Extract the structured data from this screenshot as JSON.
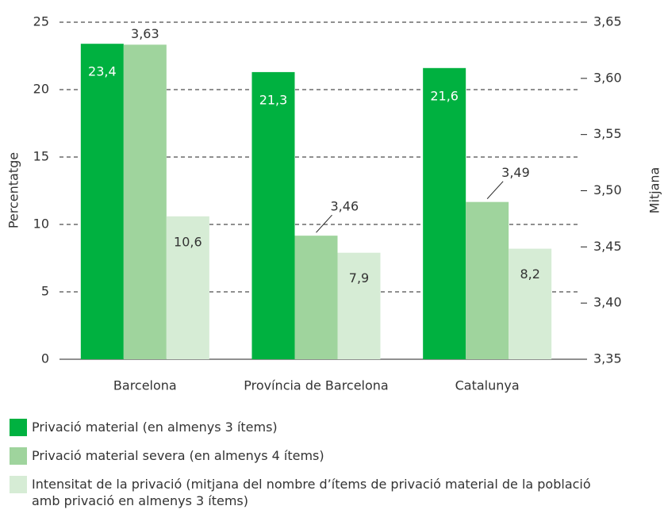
{
  "chart_data": {
    "type": "bar",
    "categories": [
      "Barcelona",
      "Província de Barcelona",
      "Catalunya"
    ],
    "series": [
      {
        "name": "Privació material (en almenys 3 ítems)",
        "color": "#00b140",
        "values": [
          23.4,
          21.3,
          21.6
        ],
        "value_labels": [
          "23,4",
          "21,3",
          "21,6"
        ]
      },
      {
        "name": "Privació material severa (en almenys 4 ítems)",
        "color": "#9fd49d",
        "axis": "y2",
        "values": [
          3.63,
          3.46,
          3.49
        ],
        "value_labels": [
          "3,63",
          "3,46",
          "3,49"
        ]
      },
      {
        "name": "Intensitat de la privació (mitjana del nombre d’ítems de privació material de la població amb privació en almenys 3 ítems)",
        "color": "#d6ecd5",
        "values": [
          10.6,
          7.9,
          8.2
        ],
        "value_labels": [
          "10,6",
          "7,9",
          "8,2"
        ]
      }
    ],
    "ylabel": "Percentatge",
    "y2label": "Mitjana",
    "ylim": [
      0,
      25
    ],
    "yticks": [
      0,
      5,
      10,
      15,
      20,
      25
    ],
    "y2lim": [
      3.35,
      3.65
    ],
    "y2ticks": [
      {
        "value": 3.35,
        "label": "3,35"
      },
      {
        "value": 3.4,
        "label": "3,40"
      },
      {
        "value": 3.45,
        "label": "3,45"
      },
      {
        "value": 3.5,
        "label": "3,50"
      },
      {
        "value": 3.55,
        "label": "3,55"
      },
      {
        "value": 3.6,
        "label": "3,60"
      },
      {
        "value": 3.65,
        "label": "3,65"
      }
    ],
    "grid": true
  }
}
